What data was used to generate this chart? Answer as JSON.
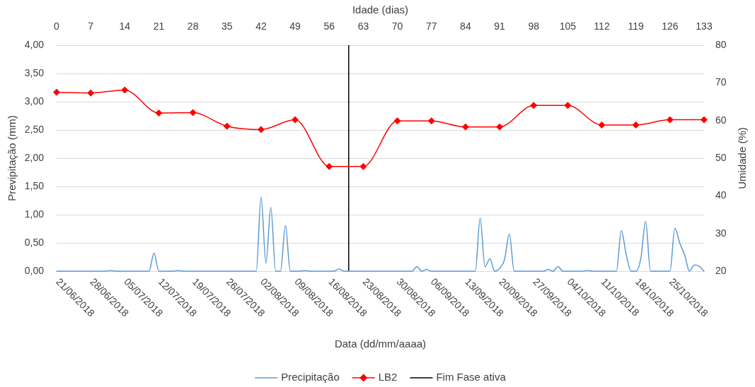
{
  "chart_data": {
    "type": "line",
    "xlabel": "Data (dd/mm/aaaa)",
    "ylabel": "Previpitação (mm)",
    "y2label": "Umidade (%)",
    "x2label": "Idade (dias)",
    "xlim": [
      "2018-06-21",
      "2018-11-01"
    ],
    "xticks": [
      {
        "value": "2018-06-21",
        "label": "21/06/2018"
      },
      {
        "value": "2018-06-28",
        "label": "28/06/2018"
      },
      {
        "value": "2018-07-05",
        "label": "05/07/2018"
      },
      {
        "value": "2018-07-12",
        "label": "12/07/2018"
      },
      {
        "value": "2018-07-19",
        "label": "19/07/2018"
      },
      {
        "value": "2018-07-26",
        "label": "26/07/2018"
      },
      {
        "value": "2018-08-02",
        "label": "02/08/2018"
      },
      {
        "value": "2018-08-09",
        "label": "09/08/2018"
      },
      {
        "value": "2018-08-16",
        "label": "16/08/2018"
      },
      {
        "value": "2018-08-23",
        "label": "23/08/2018"
      },
      {
        "value": "2018-08-30",
        "label": "30/08/2018"
      },
      {
        "value": "2018-09-06",
        "label": "06/09/2018"
      },
      {
        "value": "2018-09-13",
        "label": "13/09/2018"
      },
      {
        "value": "2018-09-20",
        "label": "20/09/2018"
      },
      {
        "value": "2018-09-27",
        "label": "27/09/2018"
      },
      {
        "value": "2018-10-04",
        "label": "04/10/2018"
      },
      {
        "value": "2018-10-11",
        "label": "11/10/2018"
      },
      {
        "value": "2018-10-18",
        "label": "18/10/2018"
      },
      {
        "value": "2018-10-25",
        "label": "25/10/2018"
      }
    ],
    "x2lim": [
      0,
      133
    ],
    "x2ticks": [
      0,
      7,
      14,
      21,
      28,
      35,
      42,
      49,
      56,
      63,
      70,
      77,
      84,
      91,
      98,
      105,
      112,
      119,
      126,
      133
    ],
    "ylim": [
      0,
      4
    ],
    "yticks": [
      {
        "value": 0,
        "label": "0,00"
      },
      {
        "value": 0.5,
        "label": "0,50"
      },
      {
        "value": 1,
        "label": "1,00"
      },
      {
        "value": 1.5,
        "label": "1,50"
      },
      {
        "value": 2,
        "label": "2,00"
      },
      {
        "value": 2.5,
        "label": "2,50"
      },
      {
        "value": 3,
        "label": "3,00"
      },
      {
        "value": 3.5,
        "label": "3,50"
      },
      {
        "value": 4,
        "label": "4,00"
      }
    ],
    "y2lim": [
      20,
      80
    ],
    "y2ticks": [
      20,
      30,
      40,
      50,
      60,
      70,
      80
    ],
    "grid": "y",
    "legend": "bottom",
    "ref_lines": [
      {
        "axis": "x",
        "value": "2018-08-20",
        "label": "Fim Fase ativa",
        "color": "#000000"
      }
    ],
    "series": [
      {
        "name": "Precipitação",
        "color": "#5b9bd5",
        "marker": "none",
        "x": [
          "2018-06-21",
          "2018-06-22",
          "2018-06-23",
          "2018-06-24",
          "2018-06-25",
          "2018-06-26",
          "2018-06-27",
          "2018-06-28",
          "2018-06-29",
          "2018-06-30",
          "2018-07-01",
          "2018-07-02",
          "2018-07-03",
          "2018-07-04",
          "2018-07-05",
          "2018-07-06",
          "2018-07-07",
          "2018-07-08",
          "2018-07-09",
          "2018-07-10",
          "2018-07-11",
          "2018-07-12",
          "2018-07-13",
          "2018-07-14",
          "2018-07-15",
          "2018-07-16",
          "2018-07-17",
          "2018-07-18",
          "2018-07-19",
          "2018-07-20",
          "2018-07-21",
          "2018-07-22",
          "2018-07-23",
          "2018-07-24",
          "2018-07-25",
          "2018-07-26",
          "2018-07-27",
          "2018-07-28",
          "2018-07-29",
          "2018-07-30",
          "2018-07-31",
          "2018-08-01",
          "2018-08-02",
          "2018-08-03",
          "2018-08-04",
          "2018-08-05",
          "2018-08-06",
          "2018-08-07",
          "2018-08-08",
          "2018-08-09",
          "2018-08-10",
          "2018-08-11",
          "2018-08-12",
          "2018-08-13",
          "2018-08-14",
          "2018-08-15",
          "2018-08-16",
          "2018-08-17",
          "2018-08-18",
          "2018-08-19",
          "2018-08-20",
          "2018-08-21",
          "2018-08-22",
          "2018-08-23",
          "2018-08-24",
          "2018-08-25",
          "2018-08-26",
          "2018-08-27",
          "2018-08-28",
          "2018-08-29",
          "2018-08-30",
          "2018-08-31",
          "2018-09-01",
          "2018-09-02",
          "2018-09-03",
          "2018-09-04",
          "2018-09-05",
          "2018-09-06",
          "2018-09-07",
          "2018-09-08",
          "2018-09-09",
          "2018-09-10",
          "2018-09-11",
          "2018-09-12",
          "2018-09-13",
          "2018-09-14",
          "2018-09-15",
          "2018-09-16",
          "2018-09-17",
          "2018-09-18",
          "2018-09-19",
          "2018-09-20",
          "2018-09-21",
          "2018-09-22",
          "2018-09-23",
          "2018-09-24",
          "2018-09-25",
          "2018-09-26",
          "2018-09-27",
          "2018-09-28",
          "2018-09-29",
          "2018-09-30",
          "2018-10-01",
          "2018-10-02",
          "2018-10-03",
          "2018-10-04",
          "2018-10-05",
          "2018-10-06",
          "2018-10-07",
          "2018-10-08",
          "2018-10-09",
          "2018-10-10",
          "2018-10-11",
          "2018-10-12",
          "2018-10-13",
          "2018-10-14",
          "2018-10-15",
          "2018-10-16",
          "2018-10-17",
          "2018-10-18",
          "2018-10-19",
          "2018-10-20",
          "2018-10-21",
          "2018-10-22",
          "2018-10-23",
          "2018-10-24",
          "2018-10-25",
          "2018-10-26",
          "2018-10-27",
          "2018-10-28",
          "2018-10-29",
          "2018-10-30",
          "2018-10-31",
          "2018-11-01"
        ],
        "values": [
          0,
          0,
          0,
          0,
          0,
          0,
          0,
          0,
          0,
          0,
          0,
          0.01,
          0,
          0,
          0,
          0,
          0,
          0,
          0,
          0,
          0.32,
          0,
          0,
          0,
          0,
          0.01,
          0,
          0,
          0,
          0,
          0,
          0,
          0,
          0,
          0,
          0,
          0,
          0,
          0,
          0,
          0,
          0,
          1.31,
          0.14,
          1.13,
          0,
          0,
          0.81,
          0,
          0,
          0,
          0.01,
          0,
          0,
          0,
          0,
          0,
          0,
          0.04,
          0,
          0,
          0,
          0,
          0,
          0,
          0,
          0,
          0,
          0,
          0,
          0,
          0,
          0,
          0,
          0.08,
          0,
          0.03,
          0,
          0,
          0,
          0,
          0,
          0,
          0,
          0,
          0,
          0,
          0.94,
          0.08,
          0.22,
          0,
          0.05,
          0.2,
          0.66,
          0,
          0,
          0,
          0,
          0,
          0,
          0,
          0.03,
          0,
          0.08,
          0,
          0,
          0,
          0,
          0,
          0.01,
          0,
          0,
          0,
          0,
          0,
          0,
          0.72,
          0.3,
          0,
          0,
          0.22,
          0.88,
          0,
          0,
          0,
          0,
          0,
          0.76,
          0.5,
          0.29,
          0,
          0.11,
          0.09,
          0
        ]
      },
      {
        "name": "LB2",
        "color": "#ff0000",
        "marker": "diamond",
        "axis": "y2",
        "x": [
          "2018-06-21",
          "2018-06-28",
          "2018-07-05",
          "2018-07-12",
          "2018-07-19",
          "2018-07-26",
          "2018-08-02",
          "2018-08-09",
          "2018-08-16",
          "2018-08-23",
          "2018-08-30",
          "2018-09-06",
          "2018-09-13",
          "2018-09-20",
          "2018-09-27",
          "2018-10-04",
          "2018-10-11",
          "2018-10-18",
          "2018-10-25",
          "2018-11-01"
        ],
        "values": [
          67.5,
          67.3,
          68.1,
          62.0,
          62.1,
          58.5,
          57.6,
          60.2,
          47.8,
          47.8,
          59.9,
          59.9,
          58.3,
          58.3,
          64.0,
          64.0,
          58.8,
          58.8,
          60.2,
          60.2
        ]
      }
    ]
  }
}
